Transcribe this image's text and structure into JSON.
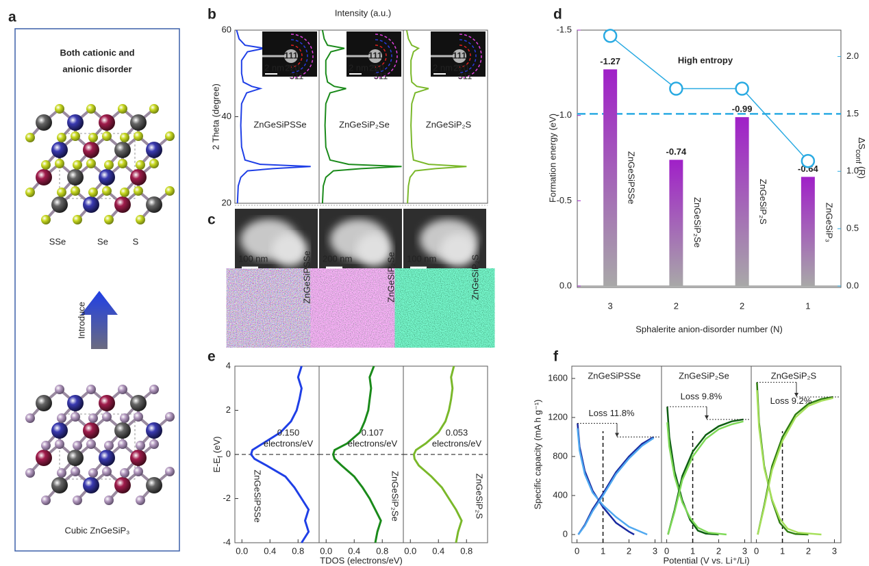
{
  "panel_a": {
    "panel": "a",
    "title": [
      "Both cationic and",
      "anionic disorder"
    ],
    "anion_labels": [
      "SSe",
      "Se",
      "S"
    ],
    "arrow_label": "Introduce",
    "caption": "Cubic ZnGeSiP₃"
  },
  "panel_c": {
    "panel": "c",
    "images": [
      {
        "scale": "100 nm",
        "name": "ZnGeSiPSSe"
      },
      {
        "scale": "200 nm",
        "name": "ZnGeSiP₂Se"
      },
      {
        "scale": "100 nm",
        "name": "ZnGeSiP₂S"
      }
    ]
  },
  "chart_data": [
    {
      "type": "line",
      "panel": "b",
      "title": "Intensity (a.u.)",
      "ylabel": "2 Theta (degree)",
      "ylim": [
        20,
        60
      ],
      "yticks": [
        20,
        40,
        60
      ],
      "xlim": [
        0,
        1
      ],
      "y": [
        20,
        24,
        26,
        27.5,
        28,
        28.5,
        29,
        30,
        33,
        38,
        43,
        45.5,
        46.5,
        47,
        48,
        50,
        53,
        55,
        55.8,
        56.5,
        58,
        60
      ],
      "subplots": [
        {
          "name": "ZnGeSiPSSe",
          "color": "#1f3fe6",
          "values": [
            0.03,
            0.04,
            0.07,
            0.15,
            0.45,
            0.9,
            0.3,
            0.12,
            0.08,
            0.07,
            0.08,
            0.14,
            0.3,
            0.2,
            0.1,
            0.08,
            0.08,
            0.15,
            0.35,
            0.12,
            0.05,
            0.02
          ],
          "inset": {
            "scale": "2 nm⁻¹",
            "rings": [
              "111",
              "220",
              "311"
            ]
          }
        },
        {
          "name": "ZnGeSiP₂Se",
          "color": "#1a8a1a",
          "values": [
            0.04,
            0.05,
            0.08,
            0.17,
            0.5,
            0.98,
            0.35,
            0.13,
            0.08,
            0.07,
            0.08,
            0.13,
            0.32,
            0.18,
            0.1,
            0.08,
            0.08,
            0.14,
            0.3,
            0.1,
            0.06,
            0.04
          ],
          "inset": {
            "scale": "2 nm⁻¹",
            "rings": [
              "111",
              "220",
              "311"
            ]
          }
        },
        {
          "name": "ZnGeSiP₂S",
          "color": "#7ab82a",
          "values": [
            0.05,
            0.06,
            0.08,
            0.14,
            0.38,
            0.75,
            0.3,
            0.12,
            0.1,
            0.09,
            0.1,
            0.14,
            0.3,
            0.16,
            0.1,
            0.09,
            0.09,
            0.12,
            0.18,
            0.1,
            0.06,
            0.04
          ],
          "inset": {
            "scale": "2 nm⁻¹",
            "rings": [
              "111",
              "220",
              "311"
            ]
          }
        }
      ]
    },
    {
      "type": "bar",
      "panel": "d",
      "ylabel": "Formation energy (eV)",
      "xlabel": "Sphalerite anion-disorder number (N)",
      "y2label": {
        "text": "ΔS",
        "sub": "conf",
        "unit": "(R)"
      },
      "categories": [
        "3",
        "2",
        "2",
        "1"
      ],
      "ylim": [
        0,
        -1.5
      ],
      "yticks": [
        {
          "value": -1.5,
          "label": "-1.5"
        },
        {
          "value": -1.0,
          "label": "-1.0"
        },
        {
          "value": -0.5,
          "label": "-0.5"
        },
        {
          "value": 0,
          "label": "0.0"
        }
      ],
      "y2lim": [
        0,
        2.23
      ],
      "y2ticks": [
        {
          "value": 0,
          "label": "0.0"
        },
        {
          "value": 0.5,
          "label": "0.5"
        },
        {
          "value": 1,
          "label": "1.0"
        },
        {
          "value": 1.5,
          "label": "1.5"
        },
        {
          "value": 2,
          "label": "2.0"
        }
      ],
      "series": [
        {
          "type": "bar",
          "color": "#a020c8",
          "values": [
            -1.27,
            -0.74,
            -0.99,
            -0.64
          ],
          "bar_labels": [
            "ZnGeSiPSSe",
            "ZnGeSiP₂Se",
            "ZnGeSiP₂S",
            "ZnGeSiP₃"
          ],
          "label_colors": [
            "#1f3fe6",
            "#1a8a1a",
            "#7ab82a",
            "#111111"
          ]
        },
        {
          "type": "line",
          "axis": "y2",
          "color": "#29aae2",
          "values": [
            2.18,
            1.72,
            1.72,
            1.09
          ]
        }
      ],
      "hline": {
        "axis": "y2",
        "value": 1.5,
        "color": "#29aae2"
      },
      "annotation": "High entropy"
    },
    {
      "type": "line",
      "panel": "e",
      "xlabel": "TDOS (electrons/eV)",
      "ylabel": {
        "text": "E-E",
        "sub": "f",
        "unit": "(eV)"
      },
      "ylim": [
        -4,
        4
      ],
      "yticks": [
        -4,
        -2,
        0,
        2,
        4
      ],
      "xlim": [
        -0.1,
        1.1
      ],
      "xticks": [
        {
          "value": 0,
          "label": "0.0"
        },
        {
          "value": 0.4,
          "label": "0.4"
        },
        {
          "value": 0.8,
          "label": "0.8"
        }
      ],
      "y": [
        -4,
        -3.5,
        -3,
        -2.5,
        -2,
        -1.5,
        -1,
        -0.5,
        -0.2,
        0,
        0.2,
        0.5,
        1,
        1.5,
        2,
        2.5,
        3,
        3.5,
        4
      ],
      "subplots": [
        {
          "name": "ZnGeSiPSSe",
          "color": "#1f3fe6",
          "dos_label": "0.150",
          "dos_unit": "electrons/eV",
          "values": [
            0.85,
            0.95,
            0.9,
            0.95,
            0.85,
            0.75,
            0.62,
            0.35,
            0.18,
            0.13,
            0.15,
            0.3,
            0.55,
            0.7,
            0.78,
            0.82,
            0.85,
            0.8,
            0.85
          ]
        },
        {
          "name": "ZnGeSiP₂Se",
          "color": "#1a8a1a",
          "dos_label": "0.107",
          "dos_unit": "electrons/eV",
          "values": [
            0.7,
            0.73,
            0.78,
            0.7,
            0.62,
            0.52,
            0.4,
            0.22,
            0.12,
            0.1,
            0.12,
            0.3,
            0.48,
            0.55,
            0.6,
            0.62,
            0.64,
            0.62,
            0.68
          ]
        },
        {
          "name": "ZnGeSiP₂S",
          "color": "#7ab82a",
          "dos_label": "0.053",
          "dos_unit": "electrons/eV",
          "values": [
            0.65,
            0.68,
            0.73,
            0.65,
            0.55,
            0.45,
            0.3,
            0.12,
            0.06,
            0.05,
            0.08,
            0.22,
            0.4,
            0.5,
            0.55,
            0.58,
            0.6,
            0.58,
            0.62
          ]
        }
      ]
    },
    {
      "type": "line",
      "panel": "f",
      "xlabel": "Potential (V vs. Li⁺/Li)",
      "ylabel": "Specific capacity (mA h g⁻¹)",
      "ylim": [
        -84,
        1726
      ],
      "yticks": [
        0,
        400,
        800,
        1200,
        1600
      ],
      "xlim": [
        -0.2,
        3.25
      ],
      "xticks": [
        0,
        1,
        2,
        3
      ],
      "vline": 1,
      "subplots": [
        {
          "name": "ZnGeSiPSSe",
          "color": "#1f3fe6",
          "loss": "Loss 11.8%",
          "series": [
            {
              "color": "#1a2aa0",
              "x": [
                0.02,
                0.1,
                0.3,
                0.6,
                1.0,
                1.5,
                2.0,
                2.2
              ],
              "values": [
                1140,
                900,
                650,
                450,
                280,
                120,
                30,
                0
              ]
            },
            {
              "color": "#4fa8f0",
              "x": [
                0.02,
                0.1,
                0.3,
                0.6,
                1.0,
                1.5,
                2.0,
                2.7
              ],
              "values": [
                1090,
                860,
                620,
                430,
                300,
                180,
                80,
                0
              ]
            },
            {
              "color": "#1a2aa0",
              "x": [
                0.05,
                0.3,
                0.6,
                1.0,
                1.5,
                2.0,
                2.5,
                2.95
              ],
              "values": [
                0,
                100,
                260,
                420,
                640,
                800,
                930,
                1000
              ]
            },
            {
              "color": "#4fa8f0",
              "x": [
                0.05,
                0.3,
                0.6,
                1.0,
                1.5,
                2.0,
                2.5,
                2.95
              ],
              "values": [
                0,
                90,
                240,
                400,
                620,
                780,
                910,
                990
              ]
            }
          ]
        },
        {
          "name": "ZnGeSiP₂Se",
          "color": "#1a8a1a",
          "loss": "Loss 9.8%",
          "series": [
            {
              "color": "#0d5e12",
              "x": [
                0.02,
                0.1,
                0.3,
                0.6,
                0.9,
                1.2,
                1.5,
                2.0
              ],
              "values": [
                1310,
                1000,
                650,
                350,
                150,
                40,
                10,
                0
              ]
            },
            {
              "color": "#7ed957",
              "x": [
                0.02,
                0.1,
                0.3,
                0.6,
                0.9,
                1.2,
                1.6,
                2.3
              ],
              "values": [
                1150,
                900,
                600,
                330,
                170,
                70,
                20,
                0
              ]
            },
            {
              "color": "#0d5e12",
              "x": [
                0.05,
                0.3,
                0.6,
                1.0,
                1.5,
                2.0,
                2.5,
                2.95
              ],
              "values": [
                0,
                250,
                600,
                850,
                1020,
                1110,
                1160,
                1180
              ]
            },
            {
              "color": "#7ed957",
              "x": [
                0.05,
                0.3,
                0.6,
                1.0,
                1.5,
                2.0,
                2.5,
                2.95
              ],
              "values": [
                0,
                230,
                560,
                800,
                980,
                1080,
                1130,
                1160
              ]
            }
          ]
        },
        {
          "name": "ZnGeSiP₂S",
          "color": "#7ab82a",
          "loss": "Loss 9.2%",
          "series": [
            {
              "color": "#2f7d10",
              "x": [
                0.02,
                0.1,
                0.3,
                0.6,
                0.9,
                1.2,
                1.5,
                2.0
              ],
              "values": [
                1560,
                1150,
                700,
                350,
                120,
                30,
                5,
                0
              ]
            },
            {
              "color": "#a6e05a",
              "x": [
                0.02,
                0.1,
                0.3,
                0.6,
                0.9,
                1.2,
                1.6,
                2.5
              ],
              "values": [
                1480,
                1100,
                680,
                360,
                160,
                60,
                20,
                0
              ]
            },
            {
              "color": "#2f7d10",
              "x": [
                0.05,
                0.3,
                0.6,
                1.0,
                1.5,
                2.0,
                2.5,
                2.95
              ],
              "values": [
                0,
                300,
                700,
                1000,
                1230,
                1340,
                1390,
                1410
              ]
            },
            {
              "color": "#a6e05a",
              "x": [
                0.05,
                0.3,
                0.6,
                1.0,
                1.5,
                2.0,
                2.5,
                2.95
              ],
              "values": [
                0,
                280,
                660,
                960,
                1200,
                1320,
                1370,
                1400
              ]
            }
          ]
        }
      ]
    }
  ]
}
